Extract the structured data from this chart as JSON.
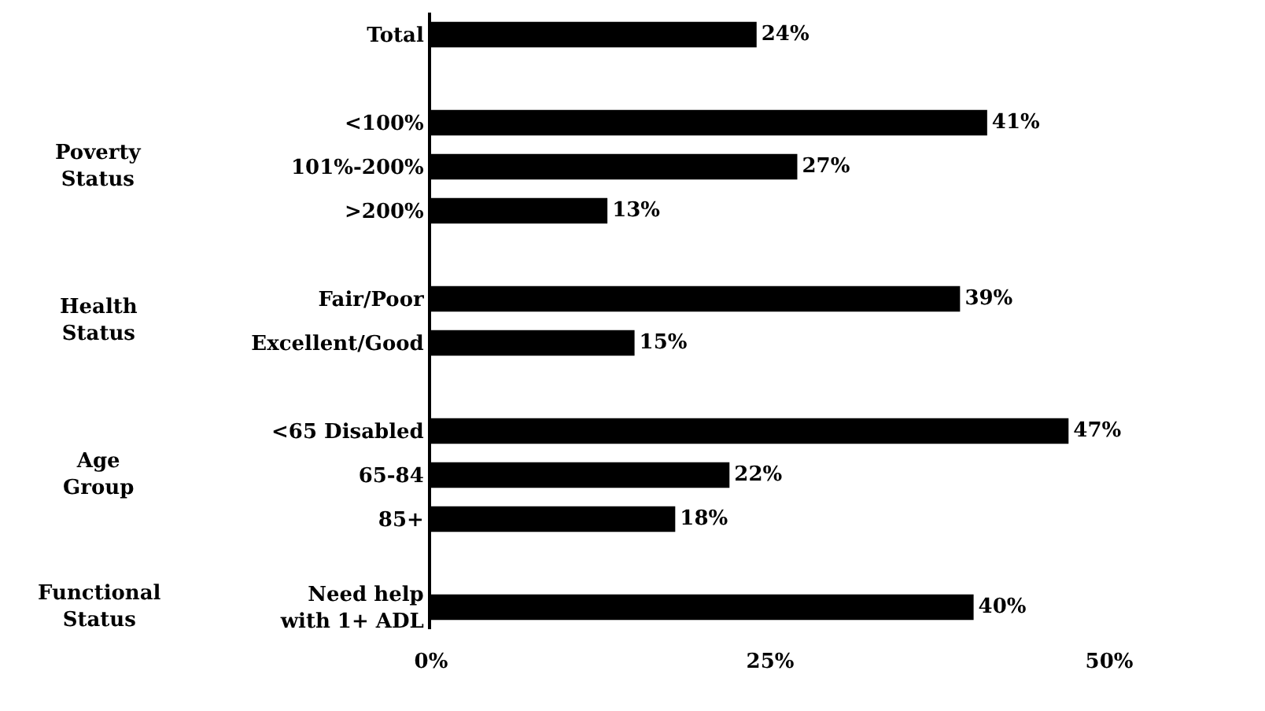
{
  "chart_data": {
    "type": "bar",
    "orientation": "horizontal",
    "categories": [
      "Total",
      null,
      "<100%",
      "101%-200%",
      ">200%",
      null,
      "Fair/Poor",
      "Excellent/Good",
      null,
      "<65 Disabled",
      "65-84",
      "85+",
      null,
      "Need help\nwith 1+ ADL"
    ],
    "values": [
      24,
      null,
      41,
      27,
      13,
      null,
      39,
      15,
      null,
      47,
      22,
      18,
      null,
      40
    ],
    "value_labels": [
      "24%",
      null,
      "41%",
      "27%",
      "13%",
      null,
      "39%",
      "15%",
      null,
      "47%",
      "22%",
      "18%",
      null,
      "40%"
    ],
    "color": "#000000",
    "xlim": [
      0,
      50
    ],
    "xticks": [
      {
        "value": 0,
        "label": "0%"
      },
      {
        "value": 25,
        "label": "25%"
      },
      {
        "value": 50,
        "label": "50%"
      }
    ],
    "annotations": [
      "Poverty\nStatus",
      "Health\nStatus",
      "Age\nGroup",
      "Functional\nStatus"
    ]
  }
}
